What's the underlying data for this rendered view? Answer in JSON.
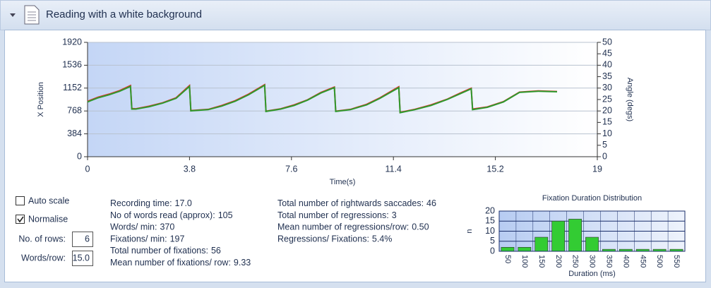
{
  "header": {
    "title": "Reading with a white background"
  },
  "controls": {
    "auto_scale": {
      "label": "Auto scale",
      "checked": false
    },
    "normalise": {
      "label": "Normalise",
      "checked": true
    },
    "rows": {
      "label": "No. of rows:",
      "value": "6"
    },
    "words_per_row": {
      "label": "Words/row:",
      "value": "15.0"
    }
  },
  "stats": {
    "left": [
      {
        "label": "Recording time:",
        "value": "17.0"
      },
      {
        "label": "No of words read (approx):",
        "value": "105"
      },
      {
        "label": "Words/ min:",
        "value": "370"
      },
      {
        "label": "Fixations/ min:",
        "value": "197"
      },
      {
        "label": "Total number of fixations:",
        "value": "56"
      },
      {
        "label": "Mean number of fixations/ row:",
        "value": "9.33"
      }
    ],
    "right": [
      {
        "label": "Total number of rightwards saccades:",
        "value": "46"
      },
      {
        "label": "Total number of regressions:",
        "value": "3"
      },
      {
        "label": "Mean number of regressions/row:",
        "value": "0.50"
      },
      {
        "label": "Regressions/ Fixations:",
        "value": "5.4%"
      }
    ]
  },
  "chart_data": [
    {
      "type": "line",
      "xlabel": "Time(s)",
      "ylabel": "X Position",
      "y2label": "Angle (degs)",
      "xlim": [
        0,
        19
      ],
      "xticks": [
        0,
        3.8,
        7.6,
        11.4,
        15.2,
        19
      ],
      "ylim": [
        0,
        1920
      ],
      "yticks": [
        0,
        384,
        768,
        1152,
        1536,
        1920
      ],
      "y2lim": [
        0,
        50
      ],
      "y2ticks": [
        0,
        5,
        10,
        15,
        20,
        25,
        30,
        35,
        40,
        45,
        50
      ],
      "grid": true,
      "x": [
        0,
        0.4,
        0.8,
        1.2,
        1.6,
        1.65,
        1.8,
        2.3,
        2.8,
        3.3,
        3.8,
        3.85,
        4.5,
        5.0,
        5.5,
        6.0,
        6.6,
        6.65,
        7.2,
        7.7,
        8.2,
        8.7,
        9.2,
        9.25,
        9.8,
        10.4,
        10.9,
        11.6,
        11.65,
        12.2,
        12.8,
        13.4,
        13.9,
        14.3,
        14.35,
        14.9,
        15.5,
        16.1,
        16.8,
        17.5
      ],
      "series": [
        {
          "name": "red",
          "color": "#e0302a",
          "values": [
            930,
            1000,
            1050,
            1110,
            1195,
            810,
            805,
            850,
            905,
            990,
            1195,
            775,
            795,
            860,
            940,
            1050,
            1210,
            765,
            805,
            870,
            955,
            1080,
            1170,
            765,
            795,
            880,
            990,
            1175,
            745,
            795,
            870,
            965,
            1070,
            1150,
            800,
            835,
            925,
            1085,
            1105,
            1095
          ]
        },
        {
          "name": "green",
          "color": "#2e9a2e",
          "values": [
            920,
            990,
            1040,
            1100,
            1180,
            800,
            800,
            840,
            900,
            980,
            1180,
            770,
            790,
            850,
            930,
            1040,
            1200,
            760,
            800,
            860,
            950,
            1070,
            1160,
            760,
            790,
            870,
            980,
            1160,
            740,
            790,
            860,
            960,
            1060,
            1140,
            790,
            830,
            920,
            1080,
            1100,
            1090
          ]
        }
      ]
    },
    {
      "type": "bar",
      "title": "Fixation Duration Distribution",
      "xlabel": "Duration (ms)",
      "ylabel": "n",
      "color": "#33cc33",
      "categories": [
        "50",
        "100",
        "150",
        "200",
        "250",
        "300",
        "350",
        "400",
        "450",
        "500",
        "550"
      ],
      "values": [
        2,
        2,
        7,
        15,
        16,
        7,
        1,
        1,
        1,
        1,
        1
      ],
      "ylim": [
        0,
        20
      ],
      "yticks": [
        0,
        5,
        10,
        15,
        20
      ],
      "grid": true
    }
  ]
}
